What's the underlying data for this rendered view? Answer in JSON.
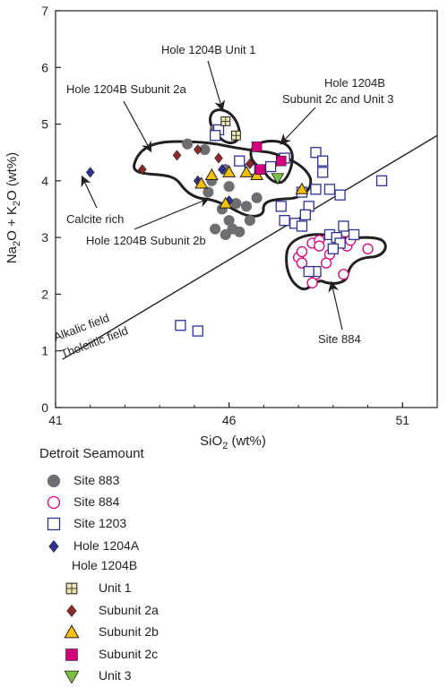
{
  "chart_data": {
    "type": "scatter",
    "xlabel_main": "SiO",
    "xlabel_sub": "2",
    "xlabel_unit": " (wt%)",
    "ylabel_parts": [
      "Na",
      "2",
      "O + K",
      "2",
      "O (wt%)"
    ],
    "xlim": [
      41,
      52
    ],
    "ylim": [
      0,
      7
    ],
    "x_ticks": [
      41,
      46,
      51
    ],
    "y_ticks": [
      0,
      1,
      2,
      3,
      4,
      5,
      6,
      7
    ],
    "grid": false,
    "divider_line": {
      "from": [
        41.2,
        0.85
      ],
      "to": [
        52,
        4.8
      ]
    },
    "field_labels": {
      "alkalic": "Alkalic field",
      "tholeiitic": "Tholeiitic field"
    },
    "annotations": {
      "unit1": "Hole 1204B Unit 1",
      "subunit2a": "Hole 1204B Subunit 2a",
      "subunit2c_l1": "Hole 1204B",
      "subunit2c_l2": "Subunit 2c and Unit 3",
      "calcite": "Calcite rich",
      "subunit2b": "Hole 1204B Subunit 2b",
      "site884": "Site 884"
    },
    "series": [
      {
        "key": "s883",
        "name": "Site 883",
        "marker": "circle-filled",
        "color": "#6d6e71",
        "points": [
          [
            44.8,
            4.65
          ],
          [
            45.6,
            4.9
          ],
          [
            45.3,
            4.55
          ],
          [
            45.5,
            4.0
          ],
          [
            45.4,
            3.8
          ],
          [
            45.9,
            4.2
          ],
          [
            46.0,
            3.9
          ],
          [
            46.2,
            3.6
          ],
          [
            46.0,
            3.3
          ],
          [
            46.1,
            3.15
          ],
          [
            45.9,
            3.05
          ],
          [
            46.3,
            3.1
          ],
          [
            46.6,
            3.3
          ],
          [
            46.8,
            3.7
          ],
          [
            45.6,
            3.15
          ],
          [
            45.8,
            3.5
          ],
          [
            46.5,
            3.55
          ]
        ]
      },
      {
        "key": "s884",
        "name": "Site 884",
        "marker": "circle-open",
        "color": "#d3007b",
        "points": [
          [
            48.0,
            2.65
          ],
          [
            48.1,
            2.75
          ],
          [
            48.4,
            2.9
          ],
          [
            48.6,
            2.95
          ],
          [
            48.9,
            2.7
          ],
          [
            49.2,
            2.95
          ],
          [
            49.4,
            2.85
          ],
          [
            49.5,
            2.95
          ],
          [
            50.0,
            2.8
          ],
          [
            48.1,
            2.55
          ],
          [
            48.5,
            2.35
          ],
          [
            48.4,
            2.2
          ],
          [
            48.8,
            2.55
          ],
          [
            49.3,
            2.35
          ],
          [
            48.6,
            2.85
          ]
        ]
      },
      {
        "key": "s1203",
        "name": "Site 1203",
        "marker": "square-open",
        "color": "#2e3192",
        "points": [
          [
            45.7,
            4.9
          ],
          [
            45.6,
            4.8
          ],
          [
            46.3,
            4.35
          ],
          [
            46.6,
            4.2
          ],
          [
            47.2,
            4.25
          ],
          [
            47.6,
            4.4
          ],
          [
            48.5,
            4.5
          ],
          [
            48.7,
            4.35
          ],
          [
            48.7,
            4.15
          ],
          [
            48.5,
            3.85
          ],
          [
            48.9,
            3.85
          ],
          [
            49.2,
            3.75
          ],
          [
            48.3,
            3.55
          ],
          [
            47.5,
            3.55
          ],
          [
            47.6,
            3.3
          ],
          [
            47.9,
            3.25
          ],
          [
            48.1,
            3.2
          ],
          [
            48.2,
            3.4
          ],
          [
            48.9,
            3.05
          ],
          [
            49.1,
            3.0
          ],
          [
            49.3,
            3.2
          ],
          [
            49.6,
            3.05
          ],
          [
            49.2,
            2.9
          ],
          [
            49.0,
            2.8
          ],
          [
            48.5,
            2.4
          ],
          [
            48.3,
            2.4
          ],
          [
            50.4,
            4.0
          ],
          [
            44.6,
            1.45
          ],
          [
            45.1,
            1.35
          ],
          [
            48.1,
            3.8
          ]
        ]
      },
      {
        "key": "h1204a",
        "name": "Hole 1204A",
        "marker": "diamond-filled",
        "color": "#2e3192",
        "points": [
          [
            42.0,
            4.15
          ],
          [
            45.8,
            4.2
          ],
          [
            46.0,
            3.65
          ],
          [
            45.1,
            4.0
          ]
        ]
      },
      {
        "key": "u1",
        "name": "Unit 1",
        "marker": "square-cross",
        "color": "#e8e6b0",
        "points": [
          [
            45.9,
            5.05
          ],
          [
            46.2,
            4.8
          ]
        ]
      },
      {
        "key": "s2a",
        "name": "Subunit 2a",
        "marker": "diamond-dark",
        "color": "#8b2a2a",
        "points": [
          [
            43.5,
            4.2
          ],
          [
            44.5,
            4.45
          ],
          [
            45.1,
            4.55
          ],
          [
            45.7,
            4.4
          ],
          [
            46.6,
            4.3
          ]
        ]
      },
      {
        "key": "s2b",
        "name": "Subunit 2b",
        "marker": "triangle-up",
        "color": "#f6c000",
        "points": [
          [
            45.2,
            3.95
          ],
          [
            45.5,
            4.1
          ],
          [
            46.0,
            4.15
          ],
          [
            46.5,
            4.15
          ],
          [
            46.8,
            4.1
          ],
          [
            45.9,
            3.6
          ],
          [
            48.1,
            3.85
          ]
        ]
      },
      {
        "key": "s2c",
        "name": "Subunit 2c",
        "marker": "square-filled",
        "color": "#d3007b",
        "points": [
          [
            46.8,
            4.6
          ],
          [
            46.9,
            4.2
          ],
          [
            47.5,
            4.35
          ]
        ]
      },
      {
        "key": "u3",
        "name": "Unit 3",
        "marker": "triangle-down",
        "color": "#7ac143",
        "points": [
          [
            47.4,
            4.05
          ]
        ]
      }
    ]
  },
  "legend": {
    "title": "Detroit Seamount",
    "sub_title": "Hole 1204B"
  }
}
